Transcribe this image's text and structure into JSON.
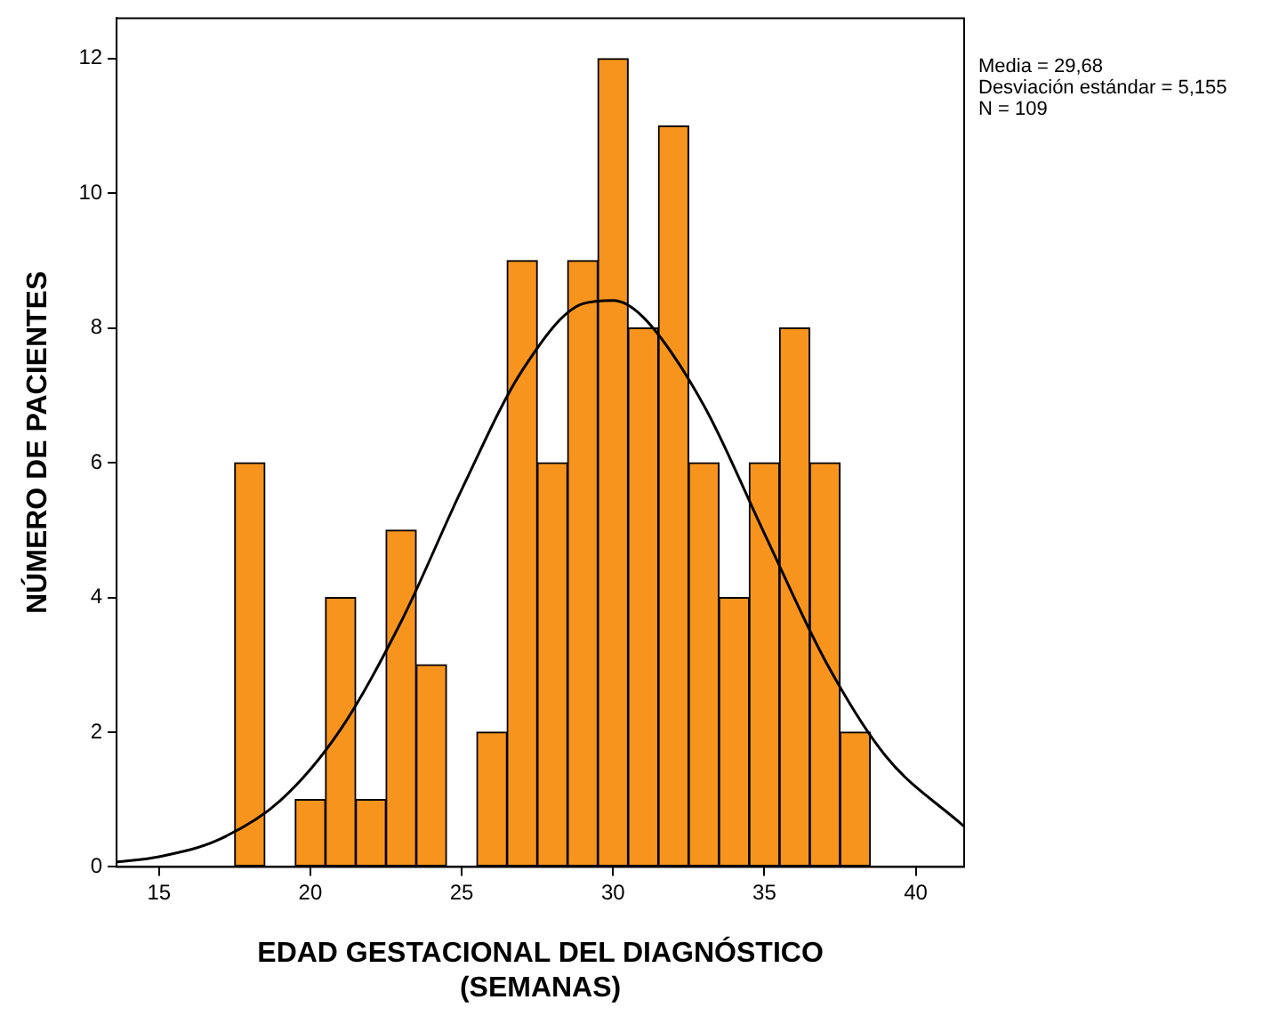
{
  "chart_data": {
    "type": "histogram",
    "xlabel": "EDAD GESTACIONAL DEL DIAGNÓSTICO\n(SEMANAS)",
    "ylabel": "NÚMERO DE PACIENTES",
    "bins": [
      17.5,
      18.5,
      19.5,
      20.5,
      21.5,
      22.5,
      23.5,
      24.5,
      25.5,
      26.5,
      27.5,
      28.5,
      29.5,
      30.5,
      31.5,
      32.5,
      33.5,
      34.5,
      35.5,
      36.5,
      37.5,
      38.5
    ],
    "values": [
      6,
      0,
      1,
      4,
      1,
      5,
      3,
      0,
      2,
      9,
      6,
      9,
      12,
      8,
      11,
      6,
      4,
      6,
      8,
      6,
      2
    ],
    "color": "#f7941d",
    "series": [
      {
        "type": "line",
        "color": "#000000",
        "x": [
          13.6,
          15,
          17,
          19,
          21,
          23,
          25,
          27,
          29,
          30,
          31,
          33,
          35,
          37,
          39,
          41.6
        ],
        "values": [
          0.07,
          0.15,
          0.41,
          0.98,
          2.04,
          3.64,
          5.6,
          7.37,
          8.36,
          8.41,
          8.16,
          6.85,
          4.95,
          3.07,
          1.65,
          0.6
        ]
      }
    ],
    "xlim": [
      13.6,
      41.6
    ],
    "xticks": [
      15,
      20,
      25,
      30,
      35,
      40
    ],
    "ylim": [
      0,
      12.6
    ],
    "yticks": [
      0,
      2,
      4,
      6,
      8,
      10,
      12
    ],
    "annotations": [
      "Media = 29,68",
      "Desviación estándar = 5,155",
      "N = 109"
    ],
    "grid": false,
    "legend": false,
    "marker": "none"
  }
}
